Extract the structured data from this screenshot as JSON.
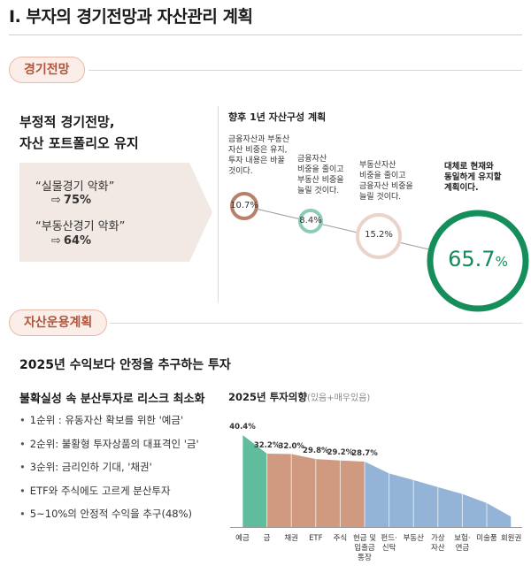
{
  "page_title": "I. 부자의 경기전망과 자산관리 계획",
  "section1": {
    "pill_label": "경기전망",
    "heading_line1": "부정적 경기전망,",
    "heading_line2": "자산 포트폴리오 유지",
    "quotes": [
      {
        "label": "“실물경기 악화”",
        "arrow": "⇨",
        "value": "75%"
      },
      {
        "label": "“부동산경기 악화”",
        "arrow": "⇨",
        "value": "64%"
      }
    ],
    "plan_title": "향후 1년 자산구성 계획",
    "plans": [
      {
        "caption_lines": [
          "금융자산과 부동산",
          "자산 비중은 유지,",
          "투자 내용은 바꿀",
          "것이다."
        ],
        "label": "10.7%",
        "value": 10.7,
        "color": "#b87f6a"
      },
      {
        "caption_lines": [
          "금융자산",
          "비중을 줄이고",
          "부동산 비중을",
          "늘릴 것이다."
        ],
        "label": "8.4%",
        "value": 8.4,
        "color": "#8ccbb7"
      },
      {
        "caption_lines": [
          "부동산자산",
          "비중을 줄이고",
          "금융자산 비중을",
          "늘릴 것이다."
        ],
        "label": "15.2%",
        "value": 15.2,
        "color": "#ead3c9"
      },
      {
        "caption_lines": [
          "대체로 현재와",
          "동일하게 유지할",
          "계획이다."
        ],
        "label": "65.7",
        "label_unit": "%",
        "value": 65.7,
        "color": "#158e5c"
      }
    ]
  },
  "section2": {
    "pill_label": "자산운용계획",
    "heading": "2025년 수익보다 안정을 추구하는 투자",
    "sub_heading": "불확실성 속 분산투자로 리스크 최소화",
    "bullets": [
      "1순위 : 유동자산 확보를 위한 '예금'",
      "2순위: 불황형 투자상품의 대표격인 '금'",
      "3순위: 금리인하 기대, '채권'",
      "ETF와 주식에도 고르게 분산투자",
      "5~10%의 안정적 수익을 추구(48%)"
    ]
  },
  "chart_data": {
    "type": "area",
    "title": "2025년 투자의향",
    "subtitle": "(있음+매우있음)",
    "categories": [
      [
        "예금"
      ],
      [
        "금"
      ],
      [
        "채권"
      ],
      [
        "ETF"
      ],
      [
        "주식"
      ],
      [
        "현금 및",
        "입출금",
        "통장"
      ],
      [
        "펀드·",
        "신탁"
      ],
      [
        "부동산"
      ],
      [
        "가상",
        "자산"
      ],
      [
        "보험·",
        "연금"
      ],
      [
        "미술품"
      ],
      [
        "회원권"
      ]
    ],
    "values": [
      40.4,
      32.2,
      32.0,
      29.8,
      29.2,
      28.7,
      23.5,
      20.6,
      17.5,
      14.5,
      10.5,
      4.5
    ],
    "value_labels": [
      "40.4%",
      "32.2%",
      "32.0%",
      "29.8%",
      "29.2%",
      "28.7%",
      "",
      "",
      "",
      "",
      "",
      ""
    ],
    "ylim": [
      0,
      45
    ],
    "grid": false,
    "colors": {
      "first": "#5fbc9c",
      "mid": "#cf9a80",
      "rest": "#93b4d6"
    }
  }
}
